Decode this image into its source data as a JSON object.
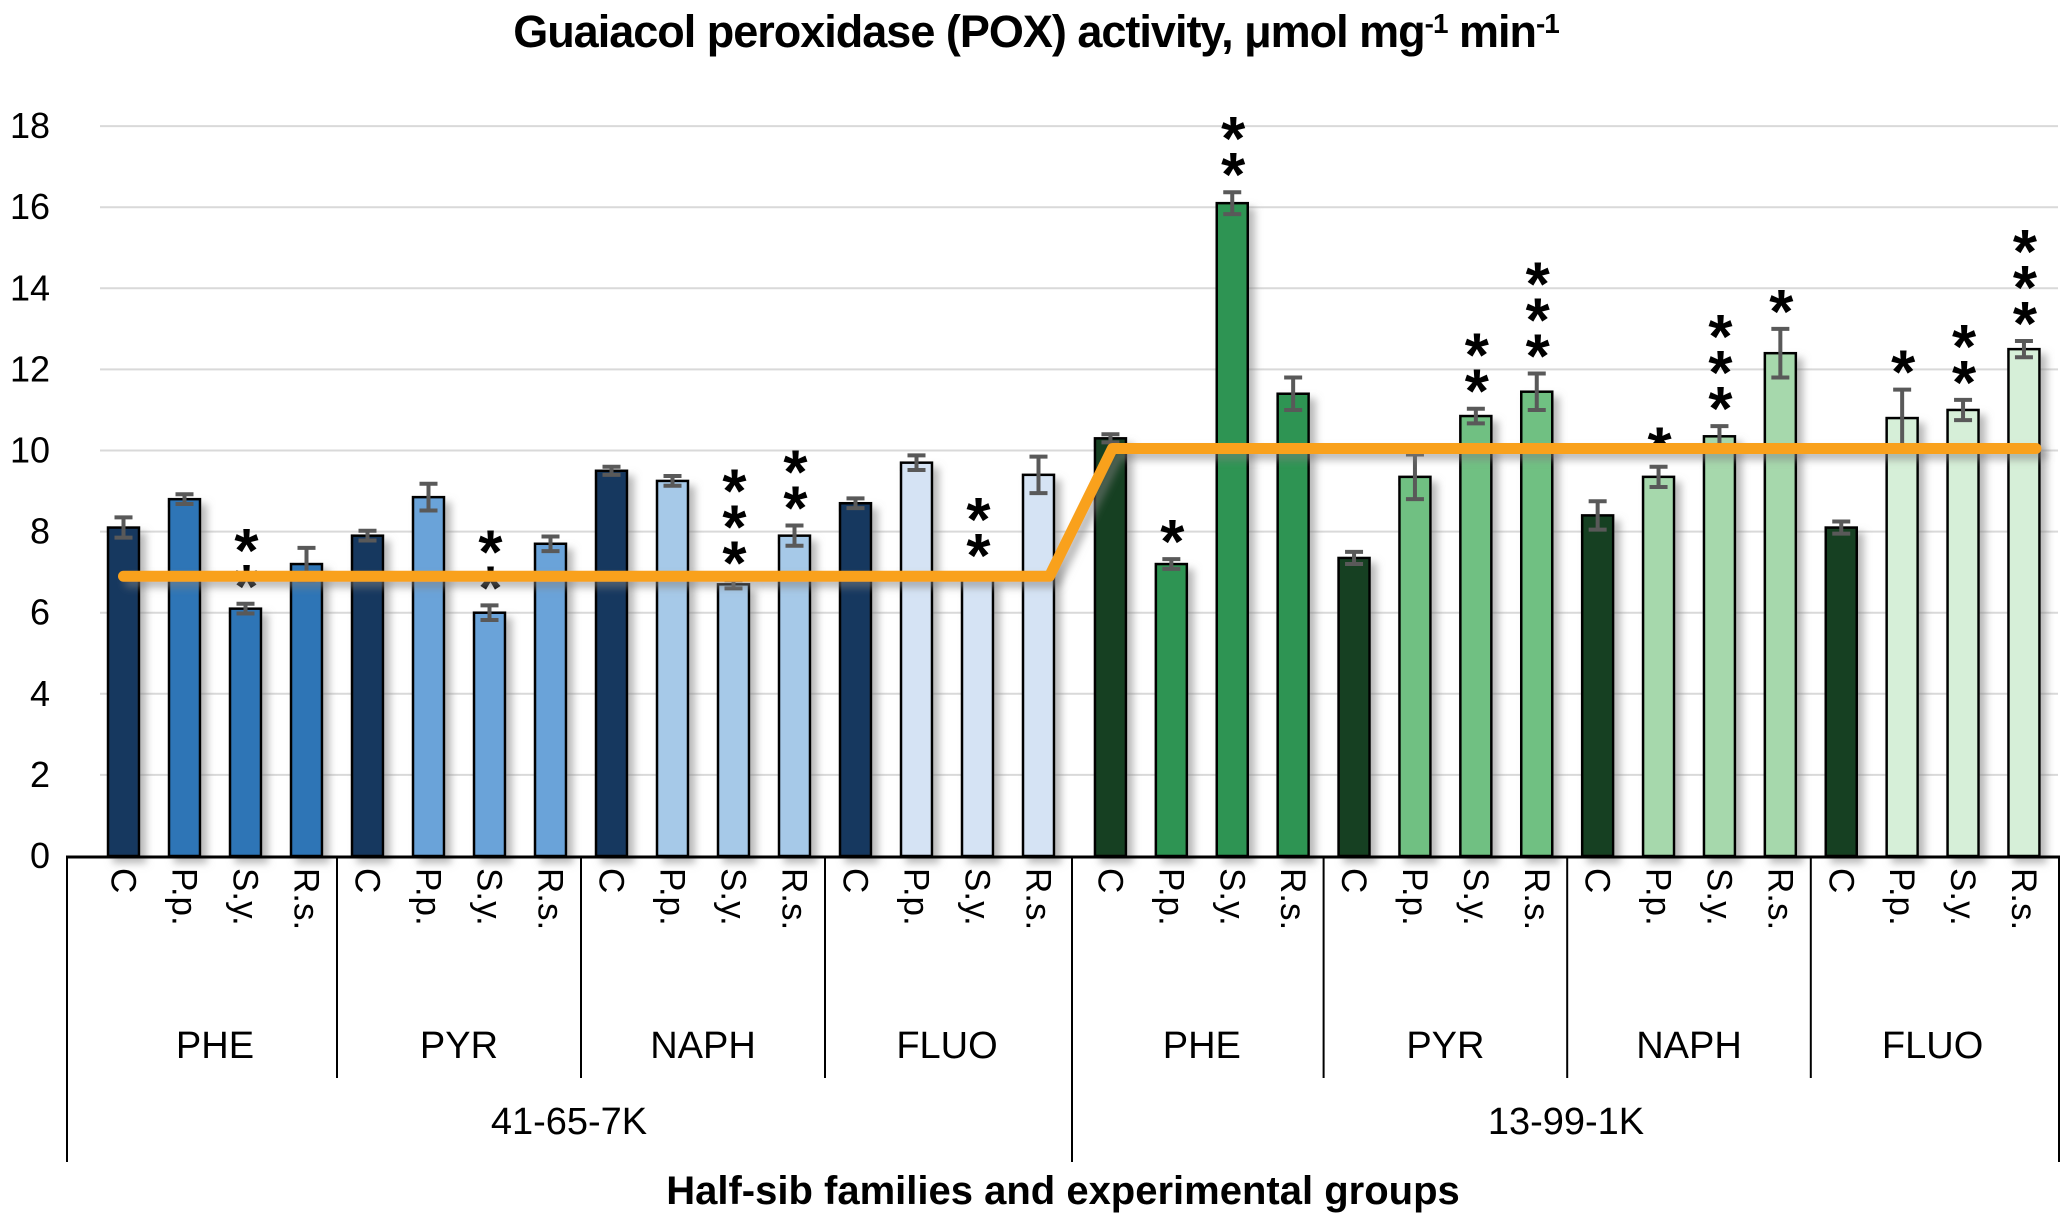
{
  "title": {
    "part1": "Guaiacol peroxidase (POX) activity, μmol mg",
    "sup1": "-1",
    "part2": " min",
    "sup2": "-1"
  },
  "chart_data": {
    "type": "bar",
    "title": "Guaiacol peroxidase (POX) activity, μmol mg⁻¹ min⁻¹",
    "xlabel": "Half-sib families and experimental groups",
    "ylabel": "",
    "ylim": [
      0,
      18
    ],
    "yticks": [
      0,
      2,
      4,
      6,
      8,
      10,
      12,
      14,
      16,
      18
    ],
    "grid": true,
    "legend_position": "none",
    "treatments": [
      "C",
      "P.p.",
      "S.y.",
      "R.s."
    ],
    "groups_order": [
      "PHE",
      "PYR",
      "NAPH",
      "FLUO"
    ],
    "error_bar_color": "#595959",
    "gridline_color": "#D9D9D9",
    "reference_line": {
      "color": "#F9A11C",
      "levels": [
        {
          "family": "41-65-7K",
          "value": 6.9
        },
        {
          "family": "13-99-1K",
          "value": 10.05
        }
      ]
    },
    "families": [
      {
        "name": "41-65-7K",
        "colors": {
          "control": "#17375E",
          "PHE": "#2E75B6",
          "PYR": "#6BA3D9",
          "NAPH": "#A6C9E8",
          "FLUO": "#D5E3F4"
        },
        "groups": [
          {
            "name": "PHE",
            "bars": [
              {
                "label": "C",
                "value": 8.1,
                "err": 0.25,
                "sig": ""
              },
              {
                "label": "P.p.",
                "value": 8.8,
                "err": 0.12,
                "sig": ""
              },
              {
                "label": "S.y.",
                "value": 6.1,
                "err": 0.12,
                "sig": "**"
              },
              {
                "label": "R.s.",
                "value": 7.2,
                "err": 0.4,
                "sig": ""
              }
            ]
          },
          {
            "name": "PYR",
            "bars": [
              {
                "label": "C",
                "value": 7.9,
                "err": 0.12,
                "sig": ""
              },
              {
                "label": "P.p.",
                "value": 8.85,
                "err": 0.33,
                "sig": ""
              },
              {
                "label": "S.y.",
                "value": 6.0,
                "err": 0.18,
                "sig": "**"
              },
              {
                "label": "R.s.",
                "value": 7.7,
                "err": 0.18,
                "sig": ""
              }
            ]
          },
          {
            "name": "NAPH",
            "bars": [
              {
                "label": "C",
                "value": 9.5,
                "err": 0.1,
                "sig": ""
              },
              {
                "label": "P.p.",
                "value": 9.25,
                "err": 0.12,
                "sig": ""
              },
              {
                "label": "S.y.",
                "value": 6.7,
                "err": 0.1,
                "sig": "***"
              },
              {
                "label": "R.s.",
                "value": 7.9,
                "err": 0.25,
                "sig": "**"
              }
            ]
          },
          {
            "name": "FLUO",
            "bars": [
              {
                "label": "C",
                "value": 8.7,
                "err": 0.12,
                "sig": ""
              },
              {
                "label": "P.p.",
                "value": 9.7,
                "err": 0.18,
                "sig": ""
              },
              {
                "label": "S.y.",
                "value": 6.9,
                "err": 0.08,
                "sig": "**"
              },
              {
                "label": "R.s.",
                "value": 9.4,
                "err": 0.45,
                "sig": ""
              }
            ]
          }
        ]
      },
      {
        "name": "13-99-1K",
        "colors": {
          "control": "#123F22",
          "PHE": "#2E9452",
          "PYR": "#70C082",
          "NAPH": "#A6D8AC",
          "FLUO": "#D6EFD8"
        },
        "groups": [
          {
            "name": "PHE",
            "bars": [
              {
                "label": "C",
                "value": 10.3,
                "err": 0.1,
                "sig": ""
              },
              {
                "label": "P.p.",
                "value": 7.2,
                "err": 0.12,
                "sig": "*"
              },
              {
                "label": "S.y.",
                "value": 16.1,
                "err": 0.27,
                "sig": "**"
              },
              {
                "label": "R.s.",
                "value": 11.4,
                "err": 0.4,
                "sig": ""
              }
            ]
          },
          {
            "name": "PYR",
            "bars": [
              {
                "label": "C",
                "value": 7.35,
                "err": 0.15,
                "sig": ""
              },
              {
                "label": "P.p.",
                "value": 9.35,
                "err": 0.55,
                "sig": ""
              },
              {
                "label": "S.y.",
                "value": 10.85,
                "err": 0.18,
                "sig": "**"
              },
              {
                "label": "R.s.",
                "value": 11.45,
                "err": 0.45,
                "sig": "***"
              }
            ]
          },
          {
            "name": "NAPH",
            "bars": [
              {
                "label": "C",
                "value": 8.4,
                "err": 0.35,
                "sig": ""
              },
              {
                "label": "P.p.",
                "value": 9.35,
                "err": 0.25,
                "sig": "*"
              },
              {
                "label": "S.y.",
                "value": 10.35,
                "err": 0.25,
                "sig": "***"
              },
              {
                "label": "R.s.",
                "value": 12.4,
                "err": 0.6,
                "sig": "*"
              }
            ]
          },
          {
            "name": "FLUO",
            "bars": [
              {
                "label": "C",
                "value": 8.1,
                "err": 0.15,
                "sig": ""
              },
              {
                "label": "P.p.",
                "value": 10.8,
                "err": 0.7,
                "sig": "*"
              },
              {
                "label": "S.y.",
                "value": 11.0,
                "err": 0.25,
                "sig": "**"
              },
              {
                "label": "R.s.",
                "value": 12.5,
                "err": 0.2,
                "sig": "***"
              }
            ]
          }
        ]
      }
    ]
  }
}
